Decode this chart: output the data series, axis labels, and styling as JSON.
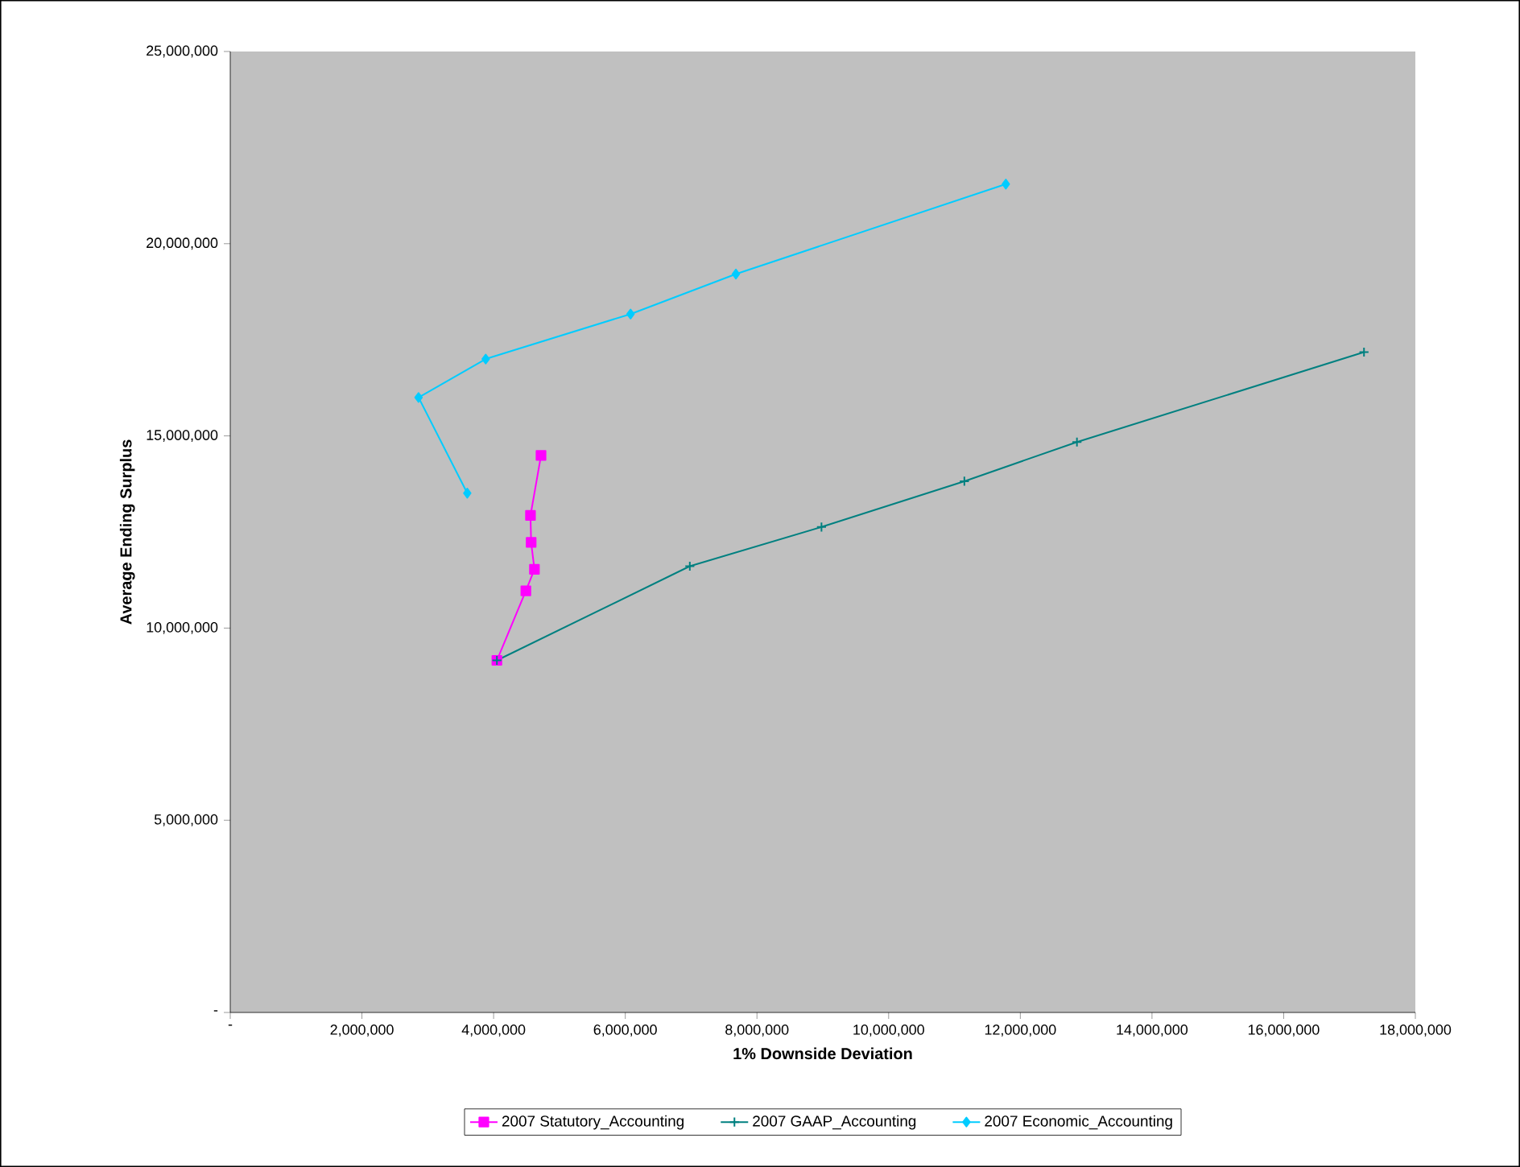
{
  "chart_data": {
    "type": "line",
    "xlabel": "1% Downside Deviation",
    "ylabel": "Average Ending Surplus",
    "xlim": [
      0,
      18000000
    ],
    "ylim": [
      0,
      25000000
    ],
    "xticks": [
      {
        "value": 0,
        "label": "-"
      },
      {
        "value": 2000000,
        "label": "2,000,000"
      },
      {
        "value": 4000000,
        "label": "4,000,000"
      },
      {
        "value": 6000000,
        "label": "6,000,000"
      },
      {
        "value": 8000000,
        "label": "8,000,000"
      },
      {
        "value": 10000000,
        "label": "10,000,000"
      },
      {
        "value": 12000000,
        "label": "12,000,000"
      },
      {
        "value": 14000000,
        "label": "14,000,000"
      },
      {
        "value": 16000000,
        "label": "16,000,000"
      },
      {
        "value": 18000000,
        "label": "18,000,000"
      }
    ],
    "yticks": [
      {
        "value": 0,
        "label": "-"
      },
      {
        "value": 5000000,
        "label": "5,000,000"
      },
      {
        "value": 10000000,
        "label": "10,000,000"
      },
      {
        "value": 15000000,
        "label": "15,000,000"
      },
      {
        "value": 20000000,
        "label": "20,000,000"
      },
      {
        "value": 25000000,
        "label": "25,000,000"
      }
    ],
    "legend": "bottom",
    "series": [
      {
        "name": "2007 Statutory_Accounting",
        "color": "#ff00ff",
        "marker": "square",
        "x": [
          4050000,
          4490000,
          4620000,
          4570000,
          4560000,
          4720000
        ],
        "values": [
          9160000,
          10970000,
          11530000,
          12230000,
          12930000,
          14490000
        ]
      },
      {
        "name": "2007 GAAP_Accounting",
        "color": "#008080",
        "marker": "cross",
        "x": [
          4050000,
          6980000,
          8980000,
          11150000,
          12860000,
          17220000
        ],
        "values": [
          9160000,
          11610000,
          12630000,
          13820000,
          14840000,
          17180000
        ]
      },
      {
        "name": "2007 Economic_Accounting",
        "color": "#00ccff",
        "marker": "diamond",
        "x": [
          3600000,
          2860000,
          3880000,
          6080000,
          7680000,
          11780000
        ],
        "values": [
          13510000,
          16000000,
          17000000,
          18170000,
          19210000,
          21550000
        ]
      }
    ]
  }
}
